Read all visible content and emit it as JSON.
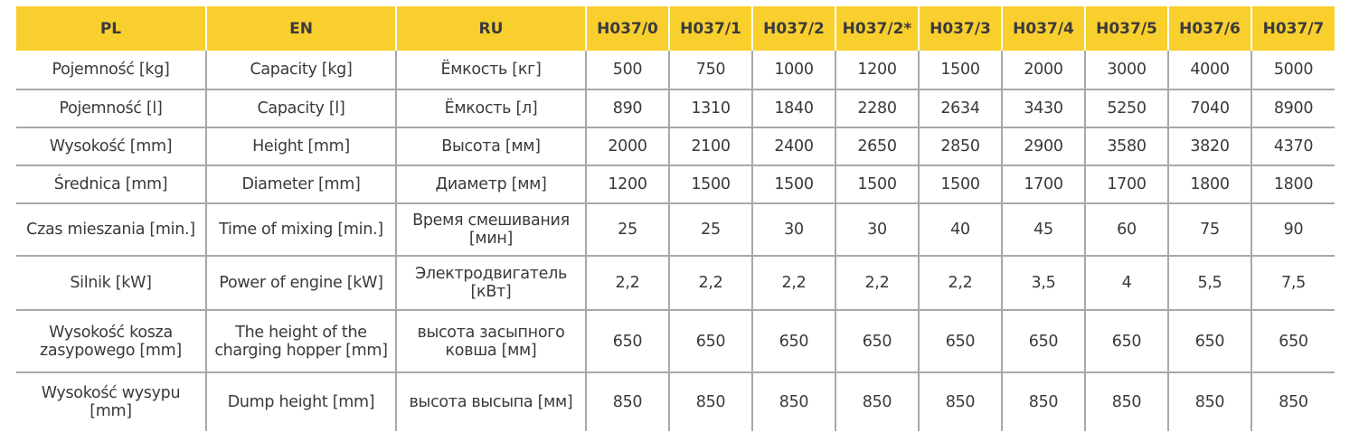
{
  "table": {
    "headers": [
      "PL",
      "EN",
      "RU",
      "H037/0",
      "H037/1",
      "H037/2",
      "H037/2*",
      "H037/3",
      "H037/4",
      "H037/5",
      "H037/6",
      "H037/7"
    ],
    "rows": [
      [
        "Pojemność [kg]",
        "Capacity [kg]",
        "Ёмкость [кг]",
        "500",
        "750",
        "1000",
        "1200",
        "1500",
        "2000",
        "3000",
        "4000",
        "5000"
      ],
      [
        "Pojemność [l]",
        "Capacity [l]",
        "Ёмкость [л]",
        "890",
        "1310",
        "1840",
        "2280",
        "2634",
        "3430",
        "5250",
        "7040",
        "8900"
      ],
      [
        "Wysokość [mm]",
        "Height [mm]",
        "Высота [мм]",
        "2000",
        "2100",
        "2400",
        "2650",
        "2850",
        "2900",
        "3580",
        "3820",
        "4370"
      ],
      [
        "Średnica [mm]",
        "Diameter [mm]",
        "Диаметр [мм]",
        "1200",
        "1500",
        "1500",
        "1500",
        "1500",
        "1700",
        "1700",
        "1800",
        "1800"
      ],
      [
        "Czas mieszania [min.]",
        "Time of mixing [min.]",
        "Время смешивания [мин]",
        "25",
        "25",
        "30",
        "30",
        "40",
        "45",
        "60",
        "75",
        "90"
      ],
      [
        "Silnik [kW]",
        "Power of engine [kW]",
        "Электродвигатель [кВт]",
        "2,2",
        "2,2",
        "2,2",
        "2,2",
        "2,2",
        "3,5",
        "4",
        "5,5",
        "7,5"
      ],
      [
        "Wysokość kosza zasypowego [mm]",
        "The height of the charging hopper [mm]",
        "высота засыпного ковша [мм]",
        "650",
        "650",
        "650",
        "650",
        "650",
        "650",
        "650",
        "650",
        "650"
      ],
      [
        "Wysokość wysypu [mm]",
        "Dump height [mm]",
        "высота высыпа [мм]",
        "850",
        "850",
        "850",
        "850",
        "850",
        "850",
        "850",
        "850",
        "850"
      ]
    ]
  },
  "colors": {
    "header_bg": "#f9cf2e",
    "grid": "#a8a8a8",
    "text": "#3a3a3a"
  }
}
